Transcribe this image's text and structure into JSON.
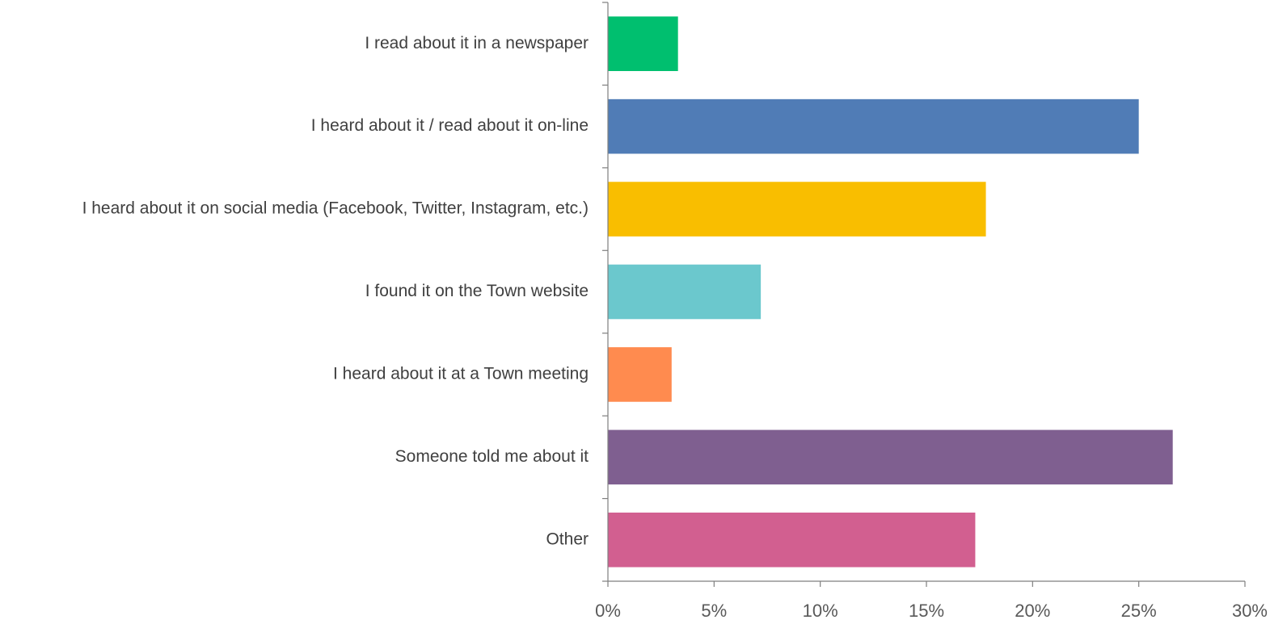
{
  "chart_data": {
    "type": "bar",
    "orientation": "horizontal",
    "title": "",
    "xlabel": "",
    "ylabel": "",
    "categories": [
      "I read about it in a newspaper",
      "I heard about it / read about it on-line",
      "I heard about it on social media (Facebook, Twitter, Instagram, etc.)",
      "I found it on the Town website",
      "I heard about it at a Town meeting",
      "Someone told me about it",
      "Other"
    ],
    "values": [
      3.3,
      25.0,
      17.8,
      7.2,
      3.0,
      26.6,
      17.3
    ],
    "colors": [
      "#00BF6F",
      "#507CB6",
      "#F9BE00",
      "#6BC8CD",
      "#FF8B4F",
      "#7F5F90",
      "#D25F90"
    ],
    "xlim": [
      0,
      30
    ],
    "xticks": [
      0,
      5,
      10,
      15,
      20,
      25,
      30
    ],
    "xtick_labels": [
      "0%",
      "5%",
      "10%",
      "15%",
      "20%",
      "25%",
      "30%"
    ],
    "grid": false,
    "legend": "none"
  }
}
